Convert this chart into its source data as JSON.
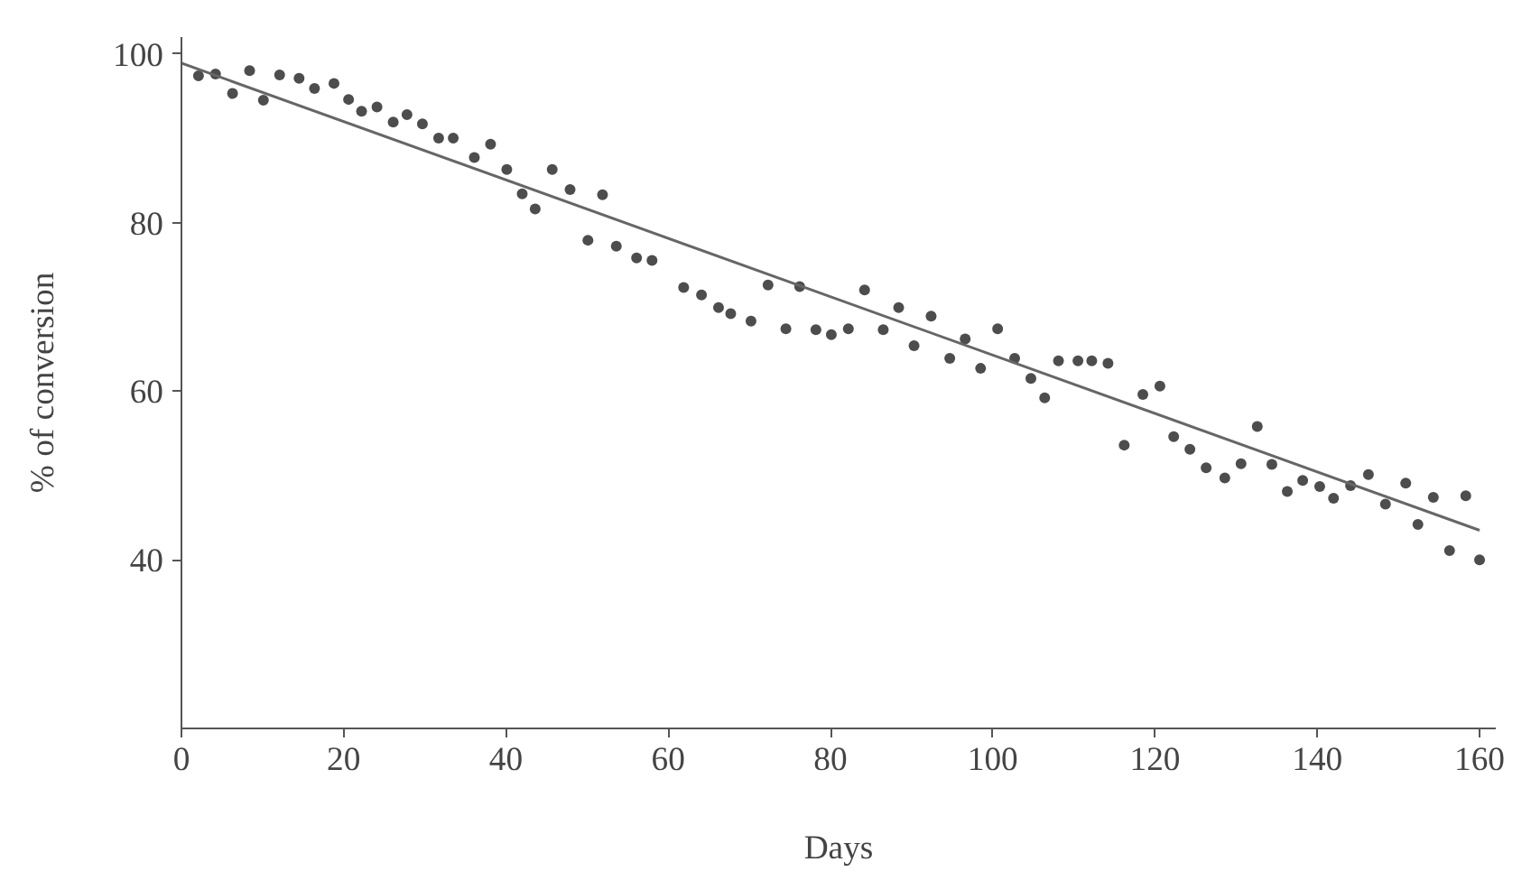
{
  "chart_data": {
    "type": "scatter",
    "xlabel": "Days",
    "ylabel": "% of conversion",
    "xlim": [
      0,
      162
    ],
    "ylim": [
      20,
      102
    ],
    "xticks": [
      0,
      20,
      40,
      60,
      80,
      100,
      120,
      140,
      160
    ],
    "yticks": [
      40,
      60,
      80,
      100
    ],
    "grid": false,
    "series": [
      {
        "marker": "circle",
        "color": "#4d4d4d",
        "x": [
          2.1,
          4.2,
          6.3,
          8.4,
          10.1,
          12.1,
          14.5,
          16.4,
          18.8,
          20.6,
          22.2,
          24.1,
          26.1,
          27.8,
          29.7,
          31.7,
          33.5,
          36.1,
          38.1,
          40.1,
          42.0,
          43.6,
          45.7,
          47.9,
          50.1,
          51.9,
          53.6,
          56.1,
          58.0,
          61.9,
          64.1,
          66.2,
          67.7,
          70.2,
          72.3,
          74.5,
          76.2,
          78.2,
          80.1,
          82.2,
          84.2,
          86.5,
          88.4,
          90.3,
          92.4,
          94.7,
          96.6,
          98.5,
          100.6,
          102.7,
          104.7,
          106.4,
          108.1,
          110.5,
          112.2,
          114.2,
          116.2,
          118.5,
          120.6,
          122.3,
          124.3,
          126.3,
          128.6,
          130.6,
          132.6,
          134.4,
          136.3,
          138.2,
          140.3,
          142.0,
          144.1,
          146.3,
          148.4,
          150.9,
          152.4,
          154.3,
          156.3,
          158.3,
          160.0
        ],
        "values": [
          97.4,
          97.6,
          95.3,
          98.0,
          94.5,
          97.5,
          97.1,
          95.9,
          96.5,
          94.6,
          93.2,
          93.7,
          91.9,
          92.8,
          91.7,
          90.0,
          90.0,
          87.7,
          89.3,
          86.3,
          83.4,
          81.6,
          86.3,
          83.9,
          77.9,
          83.3,
          77.2,
          75.8,
          75.5,
          72.3,
          71.4,
          69.9,
          69.2,
          68.3,
          72.6,
          67.4,
          72.4,
          67.3,
          66.7,
          67.4,
          72.0,
          67.3,
          69.9,
          65.4,
          68.9,
          63.9,
          66.2,
          62.7,
          67.4,
          63.9,
          61.5,
          59.2,
          63.6,
          63.6,
          63.6,
          63.3,
          53.6,
          59.6,
          60.6,
          54.6,
          53.1,
          50.9,
          49.7,
          51.4,
          55.8,
          51.3,
          48.1,
          49.4,
          48.7,
          47.3,
          48.8,
          50.1,
          46.6,
          49.1,
          44.2,
          47.4,
          41.1,
          47.6,
          40.0
        ]
      },
      {
        "type": "line",
        "marker": "none",
        "color": "#666666",
        "x": [
          0,
          160
        ],
        "values": [
          98.9,
          43.5
        ]
      }
    ]
  }
}
